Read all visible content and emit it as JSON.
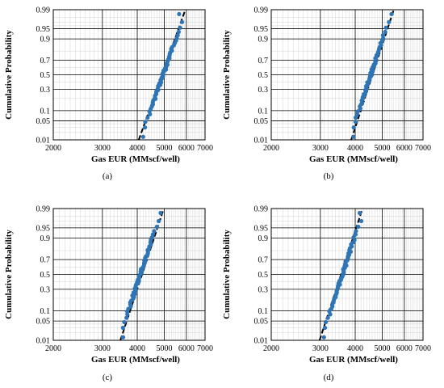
{
  "chart_data": [
    {
      "type": "scatter",
      "panel_label": "(a)",
      "xlabel": "Gas EUR (MMscf/well)",
      "ylabel": "Cumulative Probability",
      "x_scale": "log",
      "y_scale": "normal-probability",
      "xlim": [
        2000,
        7000
      ],
      "ylim": [
        0.01,
        0.99
      ],
      "x_ticks": [
        2000,
        3000,
        4000,
        5000,
        6000,
        7000
      ],
      "y_ticks": [
        0.01,
        0.05,
        0.1,
        0.3,
        0.5,
        0.7,
        0.9,
        0.95,
        0.99
      ],
      "fit_line": {
        "p01": 4050,
        "p99": 5950
      },
      "points": {
        "xmin": 4200,
        "xmax": 5650,
        "n": 60,
        "median": 4950,
        "sigma": 0.08
      },
      "grid": true,
      "marker_color": "#2e75b6",
      "fit_color": "#000000"
    },
    {
      "type": "scatter",
      "panel_label": "(b)",
      "xlabel": "Gas EUR (MMscf/well)",
      "ylabel": "Cumulative Probability",
      "x_scale": "log",
      "y_scale": "normal-probability",
      "xlim": [
        2000,
        7000
      ],
      "ylim": [
        0.01,
        0.99
      ],
      "x_ticks": [
        2000,
        3000,
        4000,
        5000,
        6000,
        7000
      ],
      "y_ticks": [
        0.01,
        0.05,
        0.1,
        0.3,
        0.5,
        0.7,
        0.9,
        0.95,
        0.99
      ],
      "fit_line": {
        "p01": 3870,
        "p99": 5500
      },
      "points": {
        "xmin": 3950,
        "xmax": 5400,
        "n": 60,
        "median": 4550,
        "sigma": 0.075
      },
      "grid": true,
      "marker_color": "#2e75b6",
      "fit_color": "#000000"
    },
    {
      "type": "scatter",
      "panel_label": "(c)",
      "xlabel": "Gas EUR (MMscf/well)",
      "ylabel": "Cumulative Probability",
      "x_scale": "log",
      "y_scale": "normal-probability",
      "xlim": [
        2000,
        7000
      ],
      "ylim": [
        0.01,
        0.99
      ],
      "x_ticks": [
        2000,
        3000,
        4000,
        5000,
        6000,
        7000
      ],
      "y_ticks": [
        0.01,
        0.05,
        0.1,
        0.3,
        0.5,
        0.7,
        0.9,
        0.95,
        0.99
      ],
      "fit_line": {
        "p01": 3480,
        "p99": 4980
      },
      "points": {
        "xmin": 3560,
        "xmax": 4850,
        "n": 60,
        "median": 4100,
        "sigma": 0.075
      },
      "grid": true,
      "marker_color": "#2e75b6",
      "fit_color": "#000000"
    },
    {
      "type": "scatter",
      "panel_label": "(d)",
      "xlabel": "Gas EUR (MMscf/well)",
      "ylabel": "Cumulative Probability",
      "x_scale": "log",
      "y_scale": "normal-probability",
      "xlim": [
        2000,
        7000
      ],
      "ylim": [
        0.01,
        0.99
      ],
      "x_ticks": [
        2000,
        3000,
        4000,
        5000,
        6000,
        7000
      ],
      "y_ticks": [
        0.01,
        0.05,
        0.1,
        0.3,
        0.5,
        0.7,
        0.9,
        0.95,
        0.99
      ],
      "fit_line": {
        "p01": 2980,
        "p99": 4250
      },
      "points": {
        "xmin": 3090,
        "xmax": 4150,
        "n": 60,
        "median": 3600,
        "sigma": 0.075
      },
      "grid": true,
      "marker_color": "#2e75b6",
      "fit_color": "#000000"
    }
  ]
}
